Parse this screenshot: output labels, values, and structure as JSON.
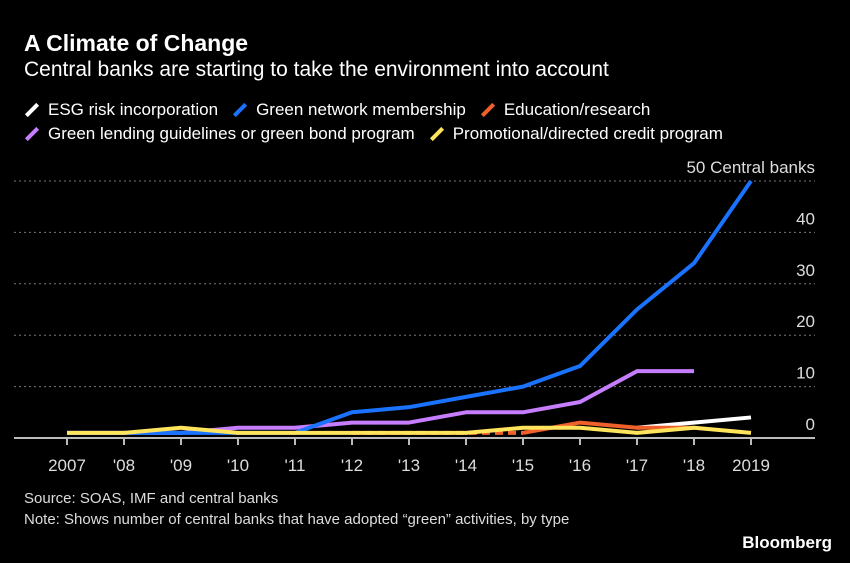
{
  "chart_data": {
    "type": "line",
    "title": "A Climate of Change",
    "subtitle": "Central banks are starting to take the environment into account",
    "x": [
      "2007",
      "'08",
      "'09",
      "'10",
      "'11",
      "'12",
      "'13",
      "'14",
      "'15",
      "'16",
      "'17",
      "'18",
      "2019"
    ],
    "ylim": [
      0,
      50
    ],
    "yticks": [
      0,
      10,
      20,
      30,
      40,
      50
    ],
    "ytick_labels": [
      "0",
      "10",
      "20",
      "30",
      "40",
      "50 Central banks"
    ],
    "grid": true,
    "legend_placement": "top",
    "series": [
      {
        "name": "ESG risk incorporation",
        "color": "#ffffff",
        "values": [
          null,
          null,
          null,
          null,
          null,
          null,
          null,
          null,
          null,
          null,
          2,
          3,
          4
        ]
      },
      {
        "name": "Green network membership",
        "color": "#1a73ff",
        "values": [
          1,
          1,
          1,
          1,
          1,
          5,
          6,
          8,
          10,
          14,
          25,
          34,
          50
        ]
      },
      {
        "name": "Education/research",
        "color": "#f0602a",
        "dashed_until": "'15",
        "values": [
          null,
          null,
          null,
          null,
          null,
          1,
          1,
          1,
          1,
          3,
          2,
          2,
          null
        ]
      },
      {
        "name": "Green lending guidelines or green bond program",
        "color": "#c77dff",
        "values": [
          1,
          1,
          1,
          2,
          2,
          3,
          3,
          5,
          5,
          7,
          13,
          13,
          null
        ]
      },
      {
        "name": "Promotional/directed credit program",
        "color": "#ffe45c",
        "values": [
          1,
          1,
          2,
          1,
          1,
          1,
          1,
          1,
          2,
          2,
          1,
          2,
          1
        ]
      }
    ]
  },
  "footer": {
    "source": "Source: SOAS, IMF and central banks",
    "note": "Note: Shows number of central banks that have adopted “green” activities, by type",
    "brand": "Bloomberg"
  }
}
